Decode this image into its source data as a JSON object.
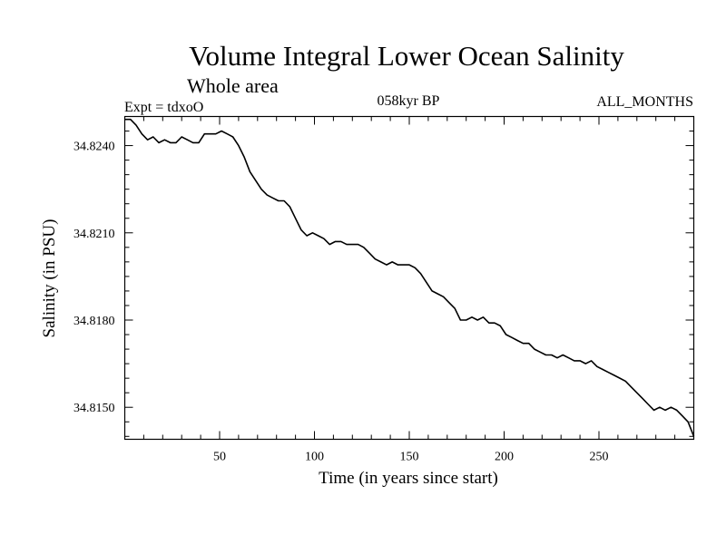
{
  "chart_data": {
    "type": "line",
    "title": "Volume Integral Lower Ocean Salinity",
    "subtitle": "Whole area",
    "experiment": "Expt = tdxoO",
    "period": "058kyr BP",
    "months": "ALL_MONTHS",
    "xlabel": "Time (in years since start)",
    "ylabel": "Salinity (in PSU)",
    "xlim": [
      0,
      300
    ],
    "ylim": [
      34.8139,
      34.825
    ],
    "xticks": [
      50,
      100,
      150,
      200,
      250
    ],
    "yticks": [
      34.815,
      34.818,
      34.821,
      34.824
    ],
    "ytick_labels": [
      "34.8150",
      "34.8180",
      "34.8210",
      "34.8240"
    ],
    "series": [
      {
        "x": [
          0,
          3,
          6,
          9,
          12,
          15,
          18,
          21,
          24,
          27,
          30,
          33,
          36,
          39,
          42,
          45,
          48,
          51,
          54,
          57,
          60,
          63,
          66,
          69,
          72,
          75,
          78,
          81,
          84,
          87,
          90,
          93,
          96,
          99,
          102,
          105,
          108,
          111,
          114,
          117,
          120,
          123,
          126,
          129,
          132,
          135,
          138,
          141,
          144,
          147,
          150,
          153,
          156,
          159,
          162,
          165,
          168,
          171,
          174,
          177,
          180,
          183,
          186,
          189,
          192,
          195,
          198,
          201,
          204,
          207,
          210,
          213,
          216,
          219,
          222,
          225,
          228,
          231,
          234,
          237,
          240,
          243,
          246,
          249,
          252,
          255,
          258,
          261,
          264,
          267,
          270,
          273,
          276,
          279,
          282,
          285,
          288,
          291,
          294,
          297,
          300
        ],
        "y": [
          34.8249,
          34.8249,
          34.8247,
          34.8244,
          34.8242,
          34.8243,
          34.8241,
          34.8242,
          34.8241,
          34.8241,
          34.8243,
          34.8242,
          34.8241,
          34.8241,
          34.8244,
          34.8244,
          34.8244,
          34.8245,
          34.8244,
          34.8243,
          34.824,
          34.8236,
          34.8231,
          34.8228,
          34.8225,
          34.8223,
          34.8222,
          34.8221,
          34.8221,
          34.8219,
          34.8215,
          34.8211,
          34.8209,
          34.821,
          34.8209,
          34.8208,
          34.8206,
          34.8207,
          34.8207,
          34.8206,
          34.8206,
          34.8206,
          34.8205,
          34.8203,
          34.8201,
          34.82,
          34.8199,
          34.82,
          34.8199,
          34.8199,
          34.8199,
          34.8198,
          34.8196,
          34.8193,
          34.819,
          34.8189,
          34.8188,
          34.8186,
          34.8184,
          34.818,
          34.818,
          34.8181,
          34.818,
          34.8181,
          34.8179,
          34.8179,
          34.8178,
          34.8175,
          34.8174,
          34.8173,
          34.8172,
          34.8172,
          34.817,
          34.8169,
          34.8168,
          34.8168,
          34.8167,
          34.8168,
          34.8167,
          34.8166,
          34.8166,
          34.8165,
          34.8166,
          34.8164,
          34.8163,
          34.8162,
          34.8161,
          34.816,
          34.8159,
          34.8157,
          34.8155,
          34.8153,
          34.8151,
          34.8149,
          34.815,
          34.8149,
          34.815,
          34.8149,
          34.8147,
          34.8145,
          34.814
        ]
      }
    ]
  }
}
